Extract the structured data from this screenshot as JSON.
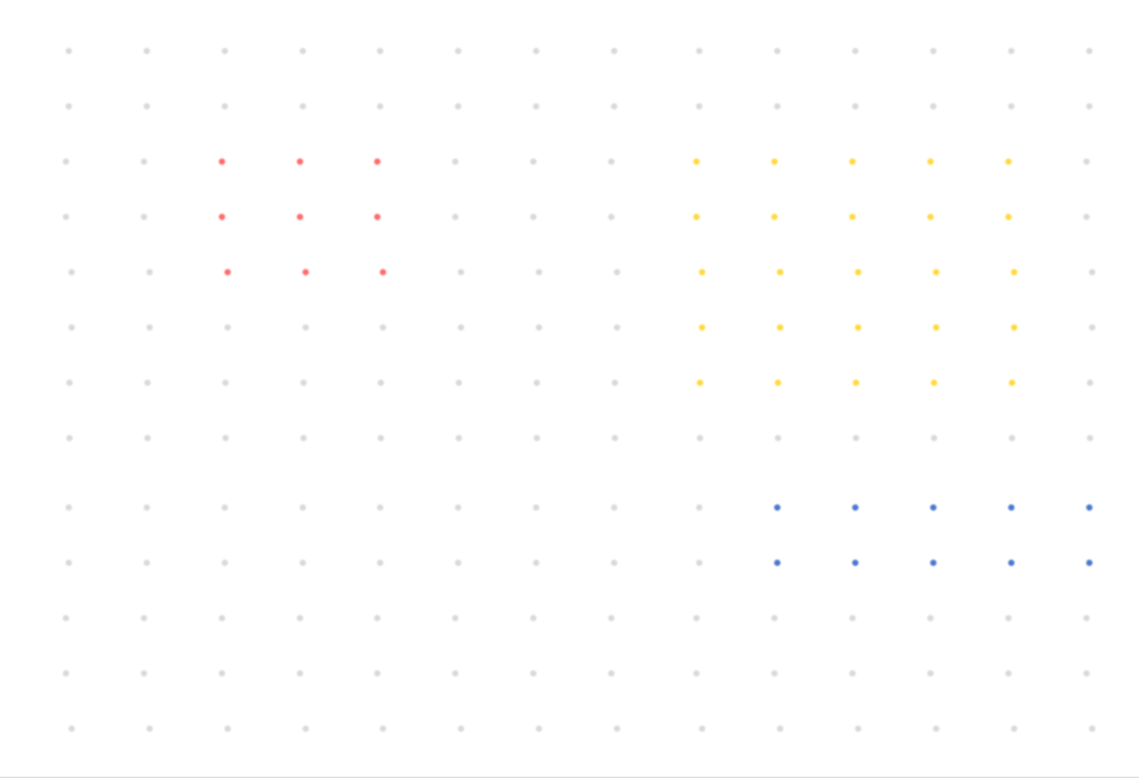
{
  "palette": {
    "background": "#ffffff",
    "inactive": "#d9d9d9",
    "red": "#ff6b6b",
    "yellow": "#ffd93d",
    "blue": "#4a78d0"
  },
  "grid": {
    "rows": 13,
    "columns": 14,
    "groups": [
      {
        "name": "red-group",
        "color": "red",
        "rows": [
          2,
          3,
          4
        ],
        "columns": [
          2,
          3,
          4
        ]
      },
      {
        "name": "yellow-group",
        "color": "yellow",
        "rows": [
          2,
          3,
          4,
          5,
          6
        ],
        "columns": [
          8,
          9,
          10,
          11,
          12
        ]
      },
      {
        "name": "blue-group",
        "color": "blue",
        "rows": [
          8,
          9
        ],
        "columns": [
          9,
          10,
          11,
          12,
          13
        ]
      }
    ]
  }
}
